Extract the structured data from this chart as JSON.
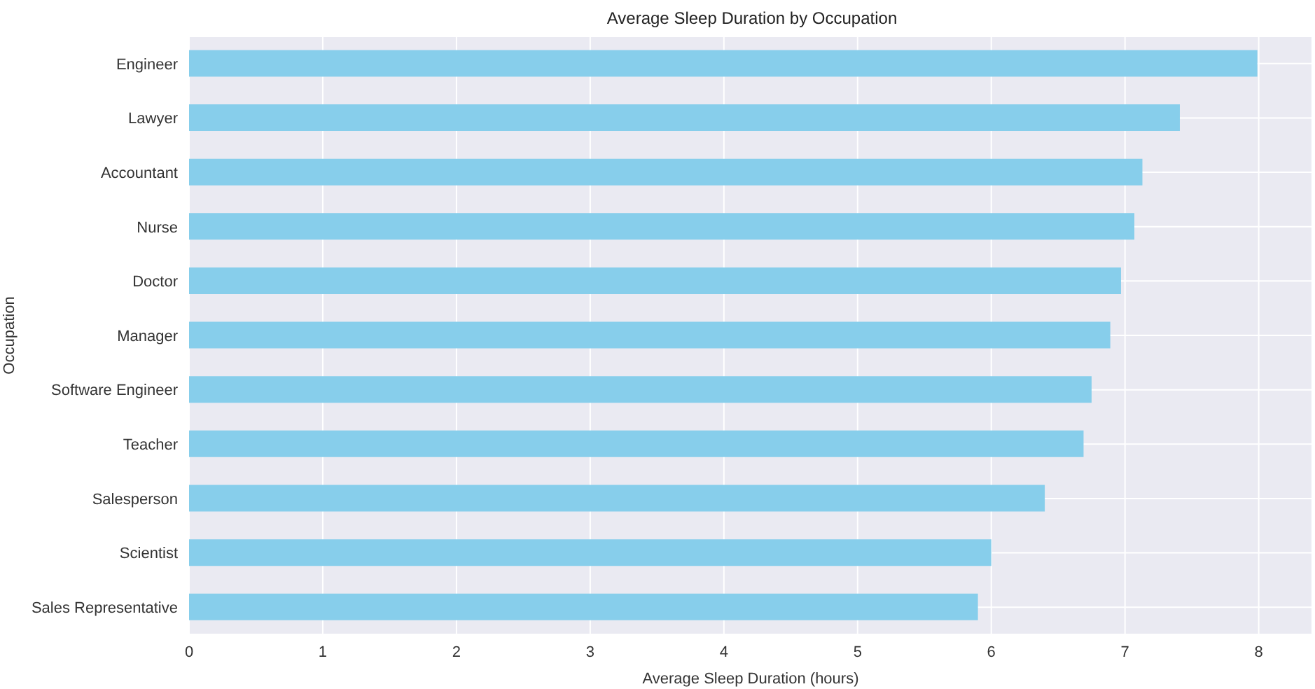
{
  "chart_data": {
    "type": "bar",
    "orientation": "horizontal",
    "title": "Average Sleep Duration by Occupation",
    "xlabel": "Average Sleep Duration (hours)",
    "ylabel": "Occupation",
    "categories": [
      "Engineer",
      "Lawyer",
      "Accountant",
      "Nurse",
      "Doctor",
      "Manager",
      "Software Engineer",
      "Teacher",
      "Salesperson",
      "Scientist",
      "Sales Representative"
    ],
    "values": [
      7.99,
      7.41,
      7.13,
      7.07,
      6.97,
      6.89,
      6.75,
      6.69,
      6.4,
      6.0,
      5.9
    ],
    "color": "#87ceeb",
    "xlim": [
      0,
      8.4
    ],
    "xticks": [
      0,
      1,
      2,
      3,
      4,
      5,
      6,
      7,
      8
    ],
    "grid": true
  }
}
